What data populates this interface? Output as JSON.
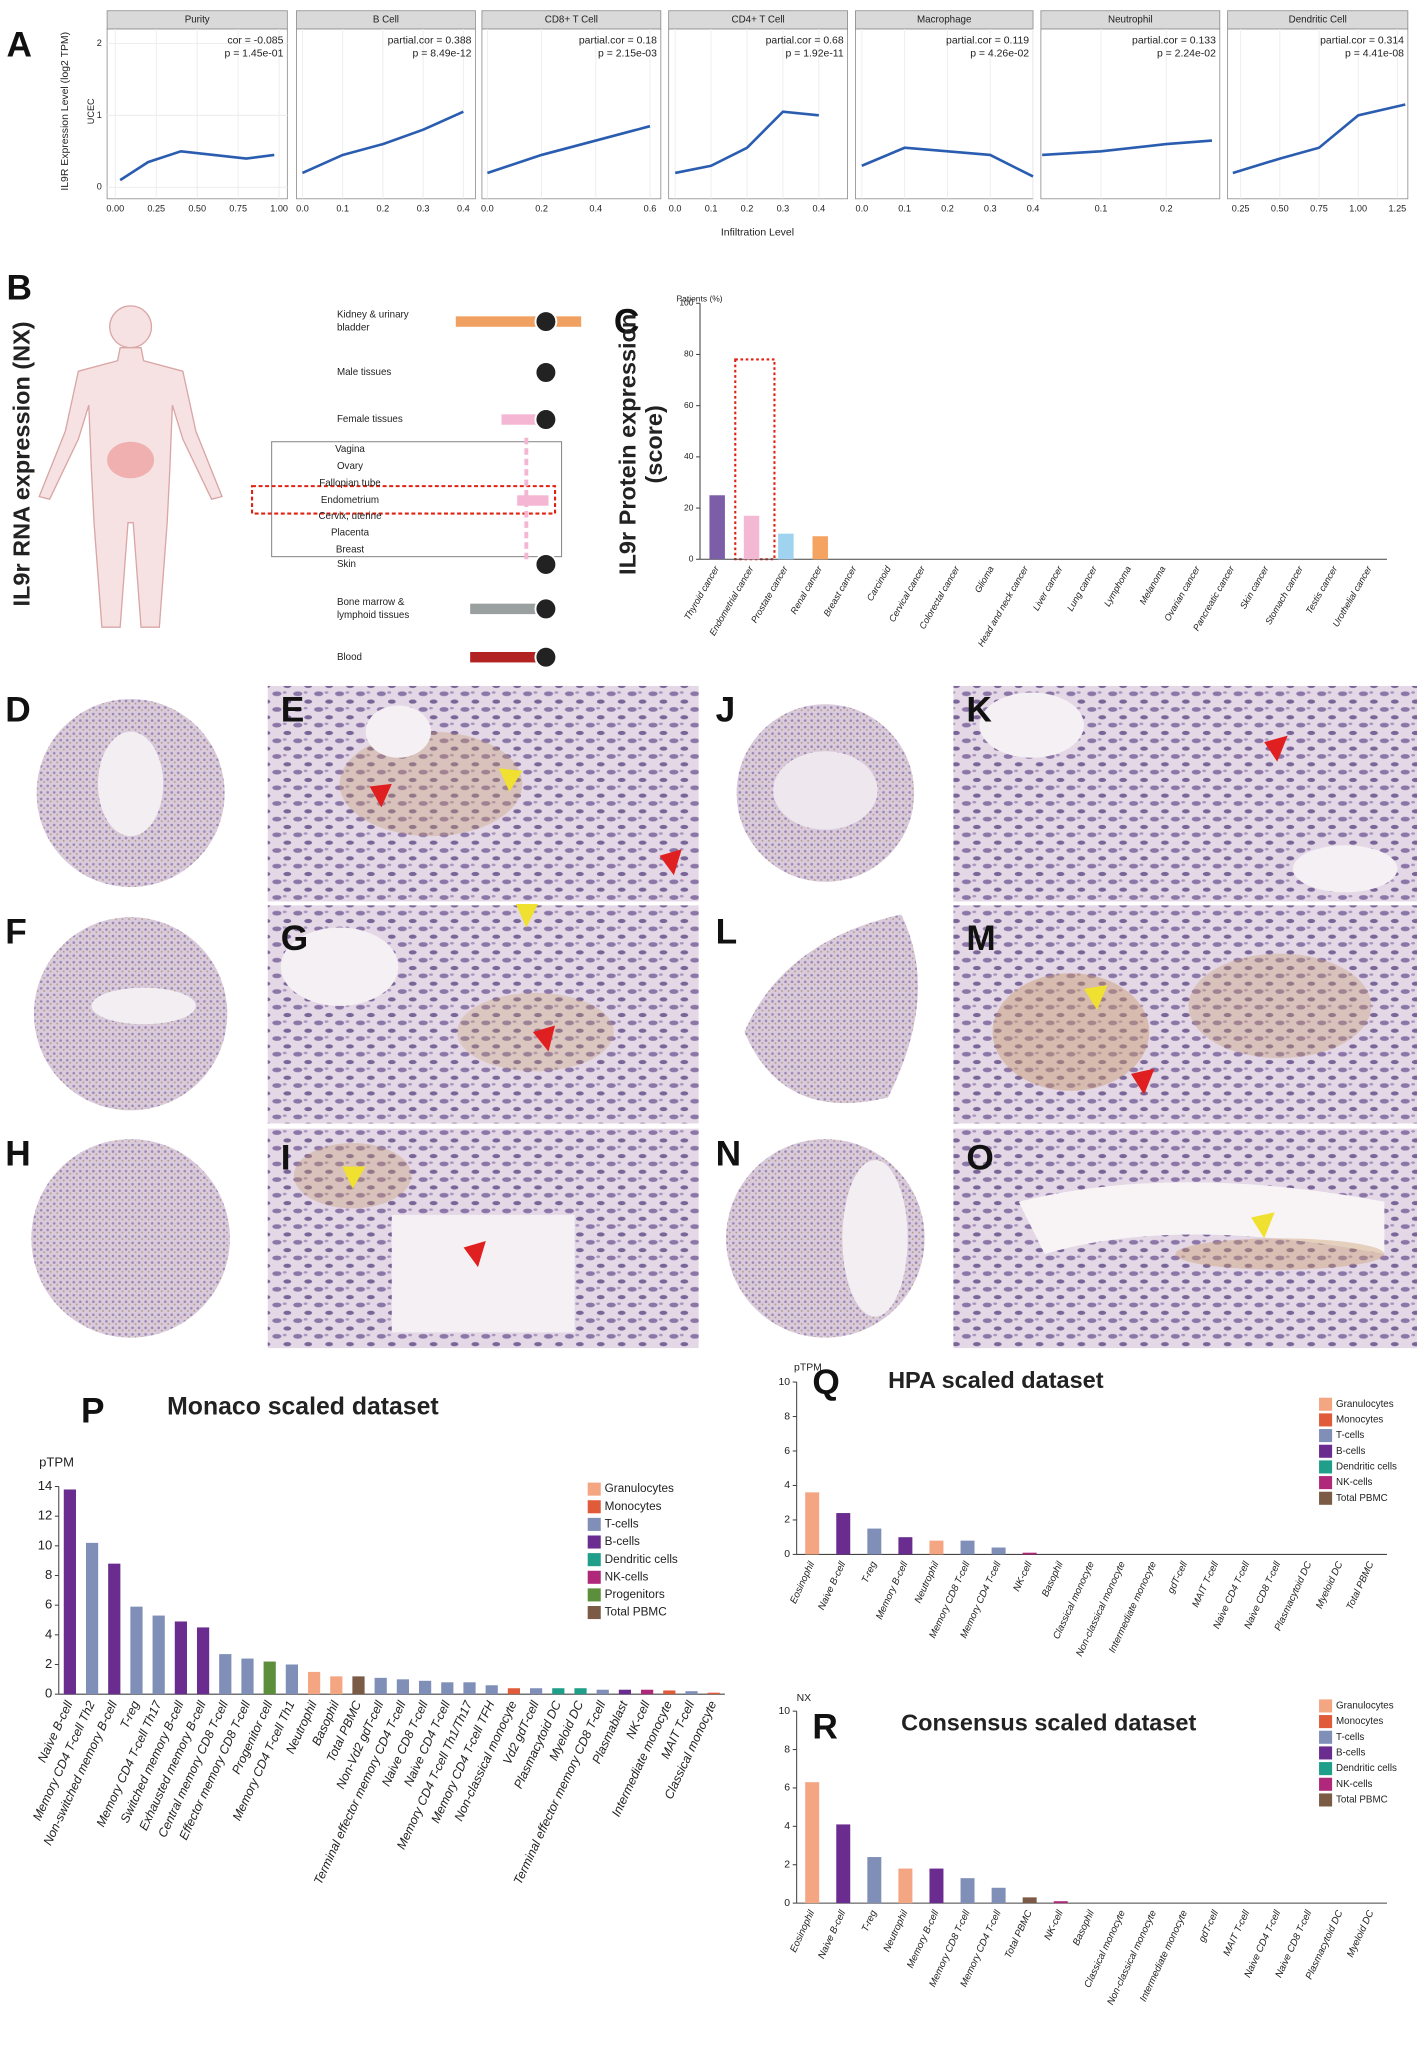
{
  "panel_labels": [
    "A",
    "B",
    "C",
    "D",
    "E",
    "F",
    "G",
    "H",
    "I",
    "J",
    "K",
    "L",
    "M",
    "N",
    "O",
    "P",
    "Q",
    "R"
  ],
  "chart_data": [
    {
      "type": "line",
      "title": "Purity",
      "y_label": "IL9R Expression Level (log2 TPM)",
      "y_sublabel": "UCEC",
      "annotations": [
        "cor = -0.085",
        "p = 1.45e-01"
      ],
      "color": "#2a5db0",
      "x": [
        0.03,
        0.2,
        0.4,
        0.6,
        0.8,
        0.97
      ],
      "values": [
        0.1,
        0.35,
        0.5,
        0.45,
        0.4,
        0.45
      ],
      "xlim": [
        -0.05,
        1.05
      ],
      "xticks": [
        {
          "value": 0,
          "label": "0.00"
        },
        0.25,
        {
          "value": 0.5,
          "label": "0.50"
        },
        0.75,
        {
          "value": 1,
          "label": "1.00"
        }
      ],
      "ylim": [
        -0.16,
        2.2
      ],
      "yticks": [
        0,
        1,
        2
      ]
    },
    {
      "type": "line",
      "title": "B Cell",
      "annotations": [
        "partial.cor = 0.388",
        "p = 8.49e-12"
      ],
      "color": "#2a5db0",
      "x": [
        0,
        0.1,
        0.2,
        0.3,
        0.4
      ],
      "values": [
        0.2,
        0.45,
        0.6,
        0.8,
        1.05
      ],
      "xlim": [
        -0.015,
        0.43
      ],
      "xticks": [
        {
          "value": 0,
          "label": "0.0"
        },
        0.1,
        0.2,
        0.3,
        0.4
      ],
      "ylim": [
        -0.16,
        2.2
      ]
    },
    {
      "type": "line",
      "title": "CD8+ T Cell",
      "annotations": [
        "partial.cor = 0.18",
        "p = 2.15e-03"
      ],
      "color": "#2a5db0",
      "x": [
        0,
        0.2,
        0.4,
        0.6
      ],
      "values": [
        0.2,
        0.45,
        0.65,
        0.85
      ],
      "xlim": [
        -0.02,
        0.64
      ],
      "xticks": [
        {
          "value": 0,
          "label": "0.0"
        },
        0.2,
        0.4,
        0.6
      ],
      "ylim": [
        -0.16,
        2.2
      ]
    },
    {
      "type": "line",
      "title": "CD4+ T Cell",
      "x_label": "Infiltration Level",
      "annotations": [
        "partial.cor = 0.68",
        "p = 1.92e-11"
      ],
      "color": "#2a5db0",
      "x": [
        0,
        0.1,
        0.2,
        0.3,
        0.4
      ],
      "values": [
        0.2,
        0.3,
        0.55,
        1.05,
        1.0
      ],
      "xlim": [
        -0.018,
        0.48
      ],
      "xticks": [
        {
          "value": 0,
          "label": "0.0"
        },
        0.1,
        0.2,
        0.3,
        0.4
      ],
      "ylim": [
        -0.16,
        2.2
      ]
    },
    {
      "type": "line",
      "title": "Macrophage",
      "annotations": [
        "partial.cor = 0.119",
        "p = 4.26e-02"
      ],
      "color": "#2a5db0",
      "x": [
        0,
        0.1,
        0.2,
        0.3,
        0.4
      ],
      "values": [
        0.3,
        0.55,
        0.5,
        0.45,
        0.15
      ],
      "xlim": [
        -0.015,
        0.4
      ],
      "xticks": [
        {
          "value": 0,
          "label": "0.0"
        },
        0.1,
        0.2,
        0.3,
        0.4
      ],
      "ylim": [
        -0.16,
        2.2
      ]
    },
    {
      "type": "line",
      "title": "Neutrophil",
      "annotations": [
        "partial.cor = 0.133",
        "p = 2.24e-02"
      ],
      "color": "#2a5db0",
      "x": [
        0.01,
        0.1,
        0.2,
        0.27
      ],
      "values": [
        0.45,
        0.5,
        0.6,
        0.65
      ],
      "xlim": [
        0.008,
        0.282
      ],
      "xticks": [
        0.1,
        0.2
      ],
      "ylim": [
        -0.16,
        2.2
      ]
    },
    {
      "type": "line",
      "title": "Dendritic Cell",
      "annotations": [
        "partial.cor = 0.314",
        "p = 4.41e-08"
      ],
      "color": "#2a5db0",
      "x": [
        0.2,
        0.5,
        0.75,
        1.0,
        1.3
      ],
      "values": [
        0.2,
        0.4,
        0.55,
        1.0,
        1.15
      ],
      "xlim": [
        0.167,
        1.317
      ],
      "xticks": [
        0.25,
        {
          "value": 0.5,
          "label": "0.50"
        },
        0.75,
        {
          "value": 1,
          "label": "1.00"
        },
        1.25
      ],
      "ylim": [
        -0.16,
        2.2
      ]
    },
    {
      "type": "hbar",
      "y_label": "IL9r RNA expression (NX)",
      "categories": [
        [
          "Kidney & urinary",
          "bladder"
        ],
        [
          "Male tissues"
        ],
        [
          "Female tissues"
        ],
        [
          "Vagina"
        ],
        [
          "Ovary"
        ],
        [
          "Fallopian tube"
        ],
        [
          "Endometrium"
        ],
        [
          "Cervix, uterine"
        ],
        [
          "Placenta"
        ],
        [
          "Breast"
        ],
        [
          "Skin"
        ],
        [
          "Bone marrow &",
          "lymphoid tissues"
        ],
        [
          "Blood"
        ]
      ],
      "values": [
        1.2,
        0.1,
        0.45,
        0,
        0,
        0,
        0.3,
        0,
        0,
        0,
        0,
        0.75,
        0.75
      ],
      "colors": [
        "#f0a060",
        "#8fc8ef",
        "#f4b6d2",
        "#f4b6d2",
        "#f4b6d2",
        "#f4b6d2",
        "#f4b6d2",
        "#f4b6d2",
        "#f4b6d2",
        "#f4b6d2",
        "#d9a0a0",
        "#9aa0a0",
        "#b22222"
      ],
      "xlim": [
        0,
        1.5
      ]
    },
    {
      "type": "bar",
      "y_unit": "Patients (%)",
      "y_label_lines": [
        "IL9r Protein expression",
        "(score)"
      ],
      "categories": [
        "Thyroid cancer",
        "Endometrial cancer",
        "Prostate cancer",
        "Renal cancer",
        "Breast cancer",
        "Carcinoid",
        "Cervical cancer",
        "Colorectal cancer",
        "Glioma",
        "Head and neck cancer",
        "Liver cancer",
        "Lung cancer",
        "Lymphoma",
        "Melanoma",
        "Ovarian cancer",
        "Pancreatic cancer",
        "Skin cancer",
        "Stomach cancer",
        "Testis cancer",
        "Urothelial cancer"
      ],
      "values": [
        25,
        17,
        10,
        9,
        0,
        0,
        0,
        0,
        0,
        0,
        0,
        0,
        0,
        0,
        0,
        0,
        0,
        0,
        0,
        0
      ],
      "colors": [
        "#7b5ea7",
        "#f2b8d4",
        "#9fd3f0",
        "#f4a460",
        "#bbbbbb",
        "#bbbbbb",
        "#bbbbbb",
        "#bbbbbb",
        "#bbbbbb",
        "#bbbbbb",
        "#bbbbbb",
        "#bbbbbb",
        "#bbbbbb",
        "#bbbbbb",
        "#bbbbbb",
        "#bbbbbb",
        "#bbbbbb",
        "#bbbbbb",
        "#bbbbbb",
        "#bbbbbb"
      ],
      "ylim": [
        0,
        100
      ],
      "yticks": [
        0,
        20,
        40,
        60,
        80,
        100
      ]
    },
    {
      "type": "bar",
      "title": "Monaco scaled dataset",
      "y_unit": "pTPM",
      "categories": [
        "Naive B-cell",
        "Memory CD4 T-cell Th2",
        "Non-switched memory B-cell",
        "T-reg",
        "Memory CD4 T-cell Th17",
        "Switched memory B-cell",
        "Exhausted memory B-cell",
        "Central memory CD8 T-cell",
        "Effector memory CD8 T-cell",
        "Progenitor cell",
        "Memory CD4 T-cell Th1",
        "Neutrophil",
        "Basophil",
        "Total PBMC",
        "Non-Vd2 gdT-cell",
        "Terminal effector memory CD4 T-cell",
        "Naive CD8 T-cell",
        "Naive CD4 T-cell",
        "Memory CD4 T-cell Th1/Th17",
        "Memory CD4 T-cell TFH",
        "Non-classical monocyte",
        "Vd2 gdT-cell",
        "Plasmacytoid DC",
        "Myeloid DC",
        "Terminal effector memory CD8 T-cell",
        "Plasmablast",
        "NK-cell",
        "Intermediate monocyte",
        "MAIT T-cell",
        "Classical monocyte"
      ],
      "values": [
        13.8,
        10.2,
        8.8,
        5.9,
        5.3,
        4.9,
        4.5,
        2.7,
        2.4,
        2.2,
        2.0,
        1.5,
        1.2,
        1.2,
        1.1,
        1.0,
        0.9,
        0.8,
        0.8,
        0.6,
        0.4,
        0.4,
        0.4,
        0.4,
        0.3,
        0.3,
        0.3,
        0.25,
        0.2,
        0.1
      ],
      "colors": [
        "#6a2c8e",
        "#7f8fb8",
        "#6a2c8e",
        "#7f8fb8",
        "#7f8fb8",
        "#6a2c8e",
        "#6a2c8e",
        "#7f8fb8",
        "#7f8fb8",
        "#5c8f3c",
        "#7f8fb8",
        "#f4a582",
        "#f4a582",
        "#7b5b45",
        "#7f8fb8",
        "#7f8fb8",
        "#7f8fb8",
        "#7f8fb8",
        "#7f8fb8",
        "#7f8fb8",
        "#e05b3a",
        "#7f8fb8",
        "#1f9e89",
        "#1f9e89",
        "#7f8fb8",
        "#6a2c8e",
        "#b0287a",
        "#e05b3a",
        "#7f8fb8",
        "#e05b3a"
      ],
      "legend": [
        {
          "name": "Granulocytes",
          "color": "#f4a582"
        },
        {
          "name": "Monocytes",
          "color": "#e05b3a"
        },
        {
          "name": "T-cells",
          "color": "#7f8fb8"
        },
        {
          "name": "B-cells",
          "color": "#6a2c8e"
        },
        {
          "name": "Dendritic cells",
          "color": "#1f9e89"
        },
        {
          "name": "NK-cells",
          "color": "#b0287a"
        },
        {
          "name": "Progenitors",
          "color": "#5c8f3c"
        },
        {
          "name": "Total PBMC",
          "color": "#7b5b45"
        }
      ],
      "ylim": [
        0,
        14
      ],
      "yticks": [
        0,
        2,
        4,
        6,
        8,
        10,
        12,
        14
      ]
    },
    {
      "type": "bar",
      "title": "HPA scaled dataset",
      "y_unit": "pTPM",
      "categories": [
        "Eosinophil",
        "Naive B-cell",
        "T-reg",
        "Memory B-cell",
        "Neutrophil",
        "Memory CD8 T-cell",
        "Memory CD4 T-cell",
        "NK-cell",
        "Basophil",
        "Classical monocyte",
        "Non-classical monocyte",
        "Intermediate monocyte",
        "gdT-cell",
        "MAIT T-cell",
        "Naive CD4 T-cell",
        "Naive CD8 T-cell",
        "Plasmacytoid DC",
        "Myeloid DC",
        "Total PBMC"
      ],
      "values": [
        3.6,
        2.4,
        1.5,
        1.0,
        0.8,
        0.8,
        0.4,
        0.1,
        0,
        0,
        0,
        0,
        0,
        0,
        0,
        0,
        0,
        0,
        0
      ],
      "colors": [
        "#f4a582",
        "#6a2c8e",
        "#7f8fb8",
        "#6a2c8e",
        "#f4a582",
        "#7f8fb8",
        "#7f8fb8",
        "#b0287a",
        "#f4a582",
        "#e05b3a",
        "#e05b3a",
        "#e05b3a",
        "#7f8fb8",
        "#7f8fb8",
        "#7f8fb8",
        "#7f8fb8",
        "#1f9e89",
        "#1f9e89",
        "#7b5b45"
      ],
      "legend": [
        {
          "name": "Granulocytes",
          "color": "#f4a582"
        },
        {
          "name": "Monocytes",
          "color": "#e05b3a"
        },
        {
          "name": "T-cells",
          "color": "#7f8fb8"
        },
        {
          "name": "B-cells",
          "color": "#6a2c8e"
        },
        {
          "name": "Dendritic cells",
          "color": "#1f9e89"
        },
        {
          "name": "NK-cells",
          "color": "#b0287a"
        },
        {
          "name": "Total PBMC",
          "color": "#7b5b45"
        }
      ],
      "ylim": [
        0,
        10
      ],
      "yticks": [
        0,
        2,
        4,
        6,
        8,
        10
      ]
    },
    {
      "type": "bar",
      "title": "Consensus scaled dataset",
      "y_unit": "NX",
      "categories": [
        "Eosinophil",
        "Naive B-cell",
        "T-reg",
        "Neutrophil",
        "Memory B-cell",
        "Memory CD8 T-cell",
        "Memory CD4 T-cell",
        "Total PBMC",
        "NK-cell",
        "Basophil",
        "Classical monocyte",
        "Non-classical monocyte",
        "Intermediate monocyte",
        "gdT-cell",
        "MAIT T-cell",
        "Naive CD4 T-cell",
        "Naive CD8 T-cell",
        "Plasmacytoid DC",
        "Myeloid DC"
      ],
      "values": [
        6.3,
        4.1,
        2.4,
        1.8,
        1.8,
        1.3,
        0.8,
        0.3,
        0.1,
        0,
        0,
        0,
        0,
        0,
        0,
        0,
        0,
        0,
        0
      ],
      "colors": [
        "#f4a582",
        "#6a2c8e",
        "#7f8fb8",
        "#f4a582",
        "#6a2c8e",
        "#7f8fb8",
        "#7f8fb8",
        "#7b5b45",
        "#b0287a",
        "#f4a582",
        "#e05b3a",
        "#e05b3a",
        "#e05b3a",
        "#7f8fb8",
        "#7f8fb8",
        "#7f8fb8",
        "#7f8fb8",
        "#1f9e89",
        "#1f9e89"
      ],
      "legend": [
        {
          "name": "Granulocytes",
          "color": "#f4a582"
        },
        {
          "name": "Monocytes",
          "color": "#e05b3a"
        },
        {
          "name": "T-cells",
          "color": "#7f8fb8"
        },
        {
          "name": "B-cells",
          "color": "#6a2c8e"
        },
        {
          "name": "Dendritic cells",
          "color": "#1f9e89"
        },
        {
          "name": "NK-cells",
          "color": "#b0287a"
        },
        {
          "name": "Total PBMC",
          "color": "#7b5b45"
        }
      ],
      "ylim": [
        0,
        10
      ],
      "yticks": [
        0,
        2,
        4,
        6,
        8,
        10
      ]
    }
  ]
}
